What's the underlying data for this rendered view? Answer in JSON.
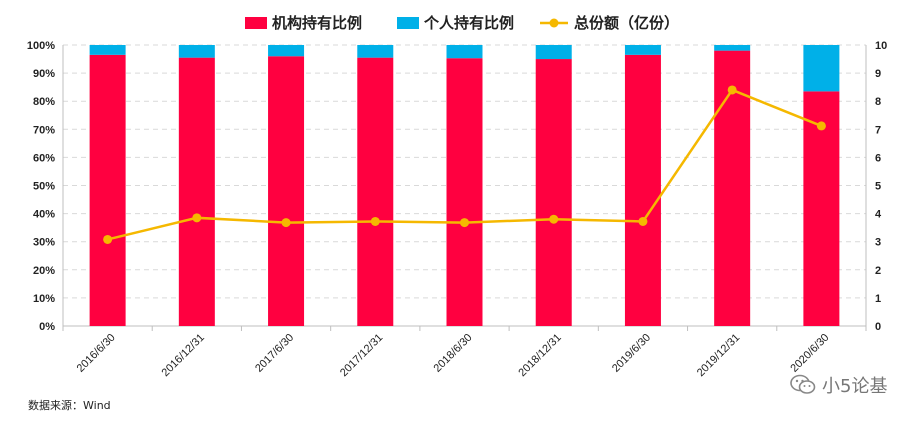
{
  "chart_data": {
    "type": "bar+line",
    "categories": [
      "2016/6/30",
      "2016/12/31",
      "2017/6/30",
      "2017/12/31",
      "2018/6/30",
      "2018/12/31",
      "2019/6/30",
      "2019/12/31",
      "2020/6/30"
    ],
    "series": [
      {
        "name": "机构持有比例",
        "type": "stacked-bar",
        "axis": "left",
        "color": "#ff0040",
        "values": [
          96.5,
          95.5,
          96.0,
          95.5,
          95.3,
          95.0,
          96.5,
          98.0,
          83.5
        ]
      },
      {
        "name": "个人持有比例",
        "type": "stacked-bar",
        "axis": "left",
        "color": "#00b0e8",
        "values": [
          3.5,
          4.5,
          4.0,
          4.5,
          4.7,
          5.0,
          3.5,
          2.0,
          16.5
        ]
      },
      {
        "name": "总份额（亿份）",
        "type": "line",
        "axis": "right",
        "color": "#f5b800",
        "values": [
          3.08,
          3.85,
          3.68,
          3.72,
          3.68,
          3.8,
          3.72,
          8.4,
          7.12
        ]
      }
    ],
    "y_left": {
      "range": [
        0,
        100
      ],
      "ticks": [
        "0%",
        "10%",
        "20%",
        "30%",
        "40%",
        "50%",
        "60%",
        "70%",
        "80%",
        "90%",
        "100%"
      ]
    },
    "y_right": {
      "range": [
        0,
        10
      ],
      "ticks": [
        "0",
        "1",
        "2",
        "3",
        "4",
        "5",
        "6",
        "7",
        "8",
        "9",
        "10"
      ]
    },
    "legend_position": "top-center",
    "grid": "horizontal dashed"
  },
  "source": "数据来源：Wind",
  "watermark": "小5论基"
}
